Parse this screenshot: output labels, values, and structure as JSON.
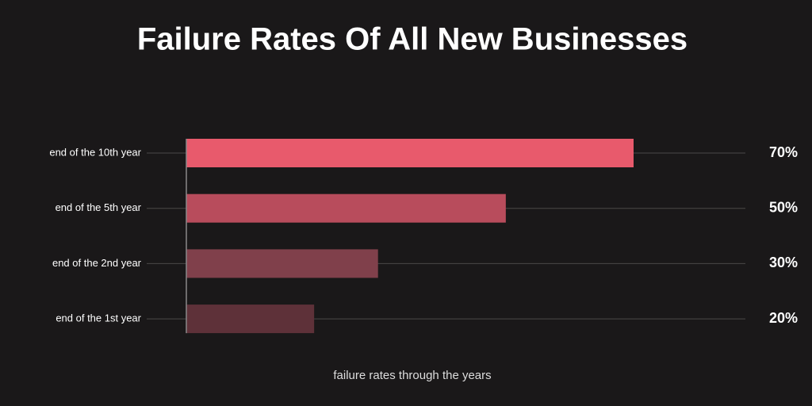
{
  "chart_data": {
    "type": "bar",
    "orientation": "horizontal",
    "title": "Failure Rates Of All New Businesses",
    "categories": [
      "end of the 10th year",
      "end of the 5th year",
      "end of the 2nd year",
      "end of the 1st year"
    ],
    "values": [
      70,
      50,
      30,
      20
    ],
    "value_labels": [
      "70%",
      "50%",
      "30%",
      "20%"
    ],
    "colors": [
      "#e85a6c",
      "#b84c5c",
      "#80404b",
      "#5e3139"
    ],
    "xlabel": "failure rates through the years",
    "xlim": [
      0,
      87.5
    ]
  }
}
